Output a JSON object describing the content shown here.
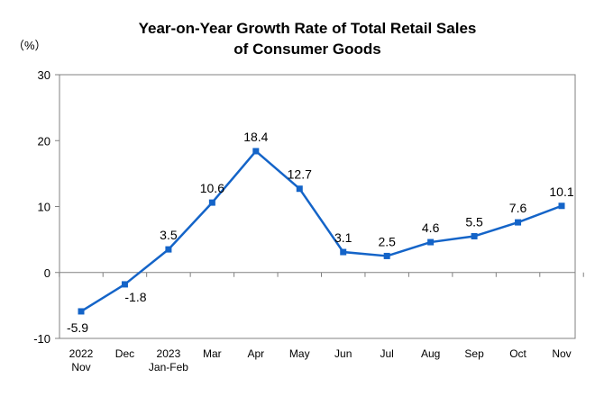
{
  "chart_data": {
    "type": "line",
    "title": "Year-on-Year Growth Rate of Total Retail Sales",
    "subtitle": "of Consumer Goods",
    "unit": "（%）",
    "ylim": [
      -10,
      30
    ],
    "yticks": [
      30,
      20,
      10,
      0,
      -10
    ],
    "categories": [
      [
        "2022",
        "Nov"
      ],
      [
        "Dec"
      ],
      [
        "2023",
        "Jan-Feb"
      ],
      [
        "Mar"
      ],
      [
        "Apr"
      ],
      [
        "May"
      ],
      [
        "Jun"
      ],
      [
        "Jul"
      ],
      [
        "Aug"
      ],
      [
        "Sep"
      ],
      [
        "Oct"
      ],
      [
        "Nov"
      ]
    ],
    "values": [
      -5.9,
      -1.8,
      3.5,
      10.6,
      18.4,
      12.7,
      3.1,
      2.5,
      4.6,
      5.5,
      7.6,
      10.1
    ],
    "data_labels": [
      "-5.9",
      "-1.8",
      "3.5",
      "10.6",
      "18.4",
      "12.7",
      "3.1",
      "2.5",
      "4.6",
      "5.5",
      "7.6",
      "10.1"
    ],
    "colors": {
      "line": "#1464c8",
      "axis": "#808080"
    },
    "grid": false,
    "legend": "none"
  }
}
